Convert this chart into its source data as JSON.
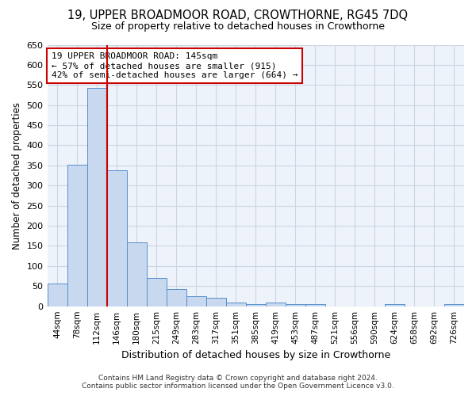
{
  "title": "19, UPPER BROADMOOR ROAD, CROWTHORNE, RG45 7DQ",
  "subtitle": "Size of property relative to detached houses in Crowthorne",
  "xlabel": "Distribution of detached houses by size in Crowthorne",
  "ylabel": "Number of detached properties",
  "bar_color": "#c8d8ee",
  "bar_edge_color": "#5590cc",
  "grid_color": "#ccd5e5",
  "background_color": "#eef2fa",
  "categories": [
    "44sqm",
    "78sqm",
    "112sqm",
    "146sqm",
    "180sqm",
    "215sqm",
    "249sqm",
    "283sqm",
    "317sqm",
    "351sqm",
    "385sqm",
    "419sqm",
    "453sqm",
    "487sqm",
    "521sqm",
    "556sqm",
    "590sqm",
    "624sqm",
    "658sqm",
    "692sqm",
    "726sqm"
  ],
  "values": [
    57,
    352,
    542,
    338,
    158,
    70,
    42,
    25,
    21,
    10,
    5,
    10,
    5,
    5,
    0,
    0,
    0,
    5,
    0,
    0,
    5
  ],
  "ylim": [
    0,
    650
  ],
  "yticks": [
    0,
    50,
    100,
    150,
    200,
    250,
    300,
    350,
    400,
    450,
    500,
    550,
    600,
    650
  ],
  "property_line_color": "#cc0000",
  "property_line_index": 3,
  "annotation_text": "19 UPPER BROADMOOR ROAD: 145sqm\n← 57% of detached houses are smaller (915)\n42% of semi-detached houses are larger (664) →",
  "annotation_box_color": "#ffffff",
  "annotation_box_edge": "#cc0000",
  "footer_line1": "Contains HM Land Registry data © Crown copyright and database right 2024.",
  "footer_line2": "Contains public sector information licensed under the Open Government Licence v3.0."
}
